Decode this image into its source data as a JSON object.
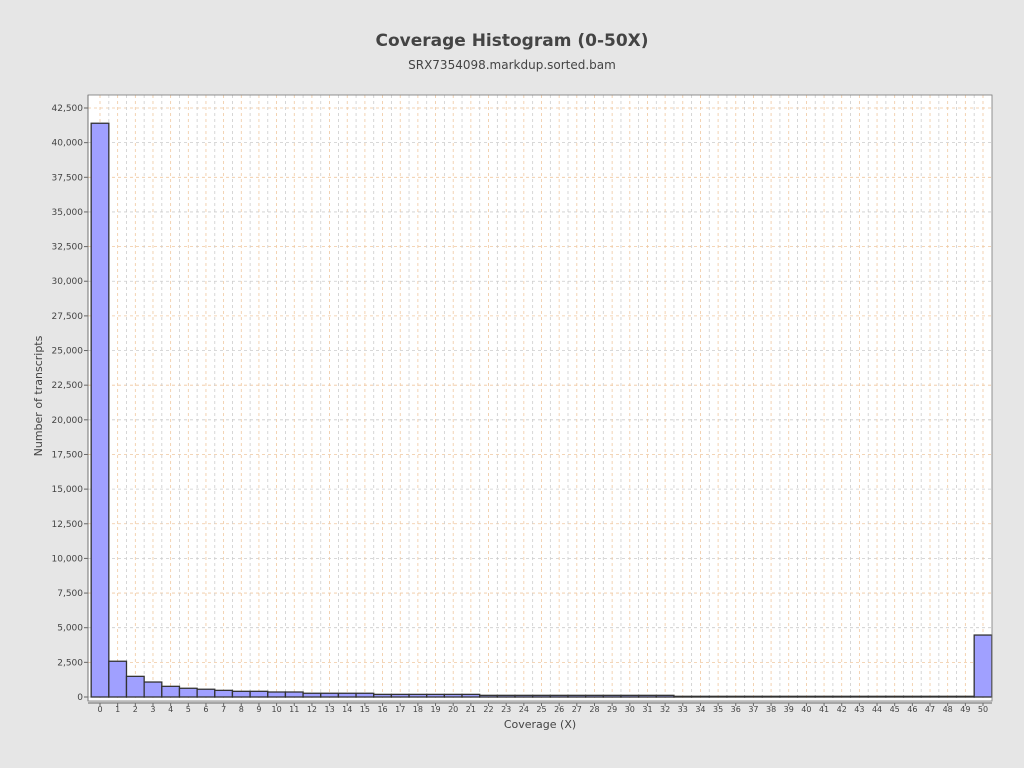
{
  "chart_data": {
    "type": "bar",
    "title": "Coverage Histogram (0-50X)",
    "subtitle": "SRX7354098.markdup.sorted.bam",
    "xlabel": "Coverage (X)",
    "ylabel": "Number of transcripts",
    "categories": [
      "0",
      "1",
      "2",
      "3",
      "4",
      "5",
      "6",
      "7",
      "8",
      "9",
      "10",
      "11",
      "12",
      "13",
      "14",
      "15",
      "16",
      "17",
      "18",
      "19",
      "20",
      "21",
      "22",
      "23",
      "24",
      "25",
      "26",
      "27",
      "28",
      "29",
      "30",
      "31",
      "32",
      "33",
      "34",
      "35",
      "36",
      "37",
      "38",
      "39",
      "40",
      "41",
      "42",
      "43",
      "44",
      "45",
      "46",
      "47",
      "48",
      "49",
      "50"
    ],
    "values": [
      41400,
      2580,
      1490,
      1080,
      770,
      630,
      560,
      480,
      410,
      410,
      360,
      360,
      270,
      270,
      270,
      270,
      190,
      190,
      190,
      190,
      190,
      190,
      120,
      120,
      120,
      120,
      120,
      120,
      120,
      120,
      120,
      120,
      120,
      50,
      50,
      50,
      50,
      50,
      50,
      50,
      50,
      50,
      50,
      50,
      50,
      50,
      50,
      50,
      50,
      50,
      4470
    ],
    "yticks": [
      "0",
      "2,500",
      "5,000",
      "7,500",
      "10,000",
      "12,500",
      "15,000",
      "17,500",
      "20,000",
      "22,500",
      "25,000",
      "27,500",
      "30,000",
      "32,500",
      "35,000",
      "37,500",
      "40,000",
      "42,500"
    ],
    "ylim": [
      0,
      43500
    ],
    "grid": true,
    "colors": {
      "bar": "#a0a0ff",
      "bar_edge": "#333333",
      "grid_major": "#f0c8a0",
      "grid_minor": "#cccccc",
      "background": "#e6e6e6"
    }
  }
}
